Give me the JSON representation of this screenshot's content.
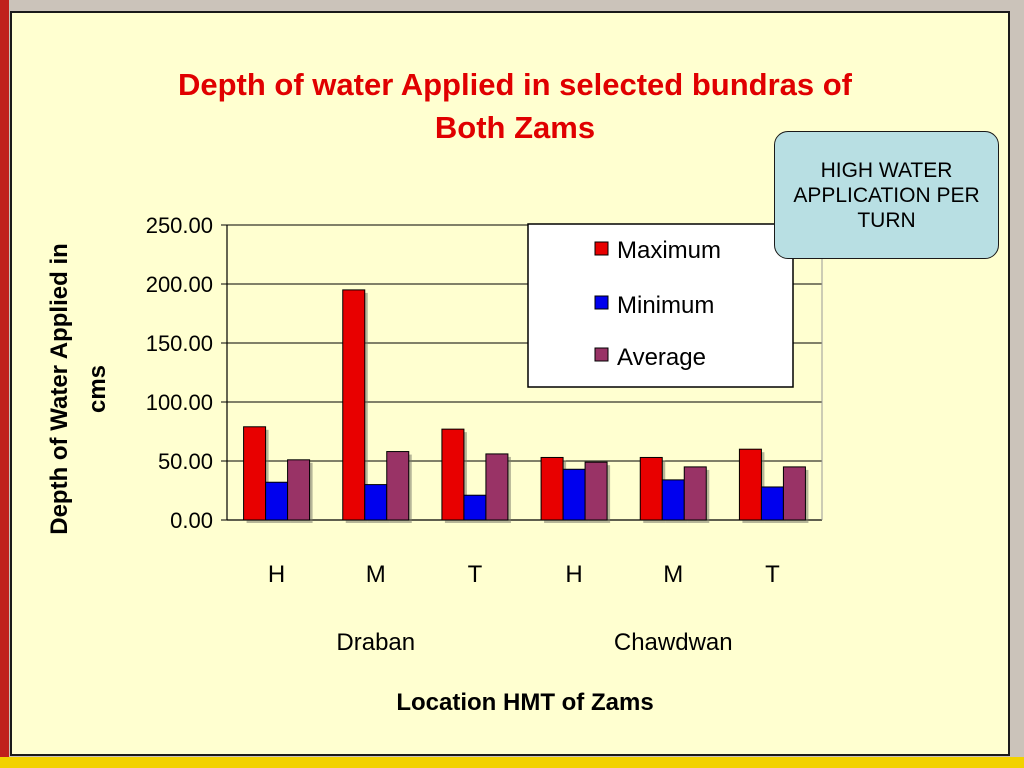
{
  "callout": {
    "text": "HIGH WATER APPLICATION PER TURN"
  },
  "chart_data": {
    "type": "bar",
    "title_lines": [
      "Depth of water Applied in selected bundras of",
      "Both Zams"
    ],
    "ylabel_lines": [
      "Depth of Water Applied in",
      "cms"
    ],
    "xlabel": "Location HMT of Zams",
    "categories": [
      "H",
      "M",
      "T",
      "H",
      "M",
      "T"
    ],
    "groups": [
      {
        "label": "Draban",
        "categories": [
          "H",
          "M",
          "T"
        ]
      },
      {
        "label": "Chawdwan",
        "categories": [
          "H",
          "M",
          "T"
        ]
      }
    ],
    "series": [
      {
        "name": "Maximum",
        "color": "#e80000",
        "values": [
          79,
          195,
          77,
          53,
          53,
          60
        ]
      },
      {
        "name": "Minimum",
        "color": "#0000ee",
        "values": [
          32,
          30,
          21,
          43,
          34,
          28
        ]
      },
      {
        "name": "Average",
        "color": "#993366",
        "values": [
          51,
          58,
          56,
          49,
          45,
          45
        ]
      }
    ],
    "ylim": [
      0,
      250
    ],
    "yticks": [
      "0.00",
      "50.00",
      "100.00",
      "150.00",
      "200.00",
      "250.00"
    ],
    "grid": true,
    "legend_position": "top-right"
  }
}
